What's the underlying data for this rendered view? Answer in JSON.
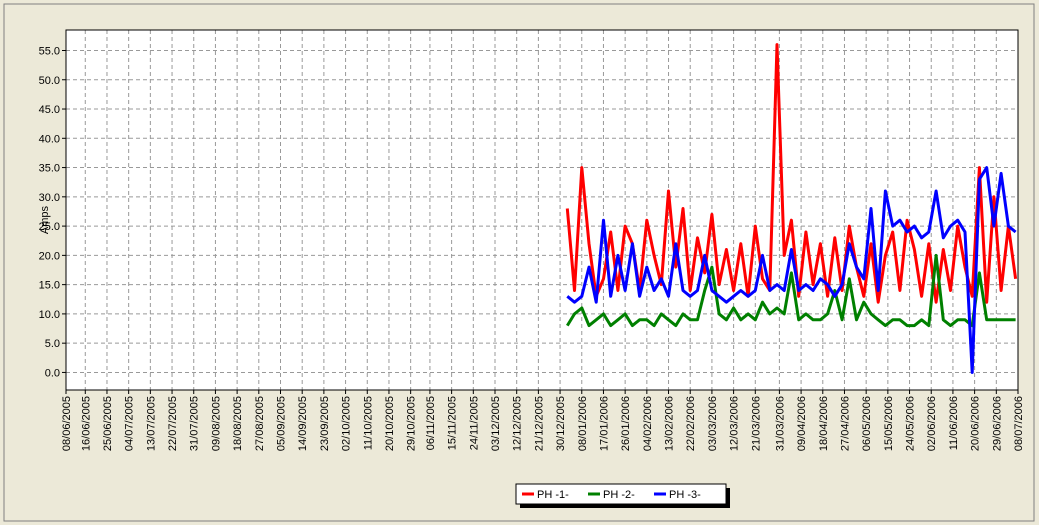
{
  "chart_data": {
    "type": "line",
    "y_label": "Amps",
    "x": [
      "02/01/2006",
      "05/01/2006",
      "08/01/2006",
      "11/01/2006",
      "14/01/2006",
      "17/01/2006",
      "20/01/2006",
      "23/01/2006",
      "26/01/2006",
      "29/01/2006",
      "01/02/2006",
      "04/02/2006",
      "07/02/2006",
      "10/02/2006",
      "13/02/2006",
      "16/02/2006",
      "19/02/2006",
      "22/02/2006",
      "25/02/2006",
      "28/02/2006",
      "03/03/2006",
      "06/03/2006",
      "09/03/2006",
      "12/03/2006",
      "15/03/2006",
      "18/03/2006",
      "21/03/2006",
      "24/03/2006",
      "27/03/2006",
      "30/03/2006",
      "02/04/2006",
      "05/04/2006",
      "08/04/2006",
      "11/04/2006",
      "14/04/2006",
      "17/04/2006",
      "20/04/2006",
      "23/04/2006",
      "26/04/2006",
      "29/04/2006",
      "02/05/2006",
      "05/05/2006",
      "08/05/2006",
      "11/05/2006",
      "14/05/2006",
      "17/05/2006",
      "20/05/2006",
      "23/05/2006",
      "26/05/2006",
      "29/05/2006",
      "01/06/2006",
      "04/06/2006",
      "07/06/2006",
      "10/06/2006",
      "13/06/2006",
      "16/06/2006",
      "19/06/2006",
      "22/06/2006",
      "25/06/2006",
      "28/06/2006",
      "01/07/2006",
      "04/07/2006",
      "07/07/2006"
    ],
    "series": [
      {
        "name": "PH -1-",
        "color": "#ff0000",
        "values": [
          28,
          14,
          35,
          22,
          13,
          16,
          24,
          14,
          25,
          22,
          14,
          26,
          20,
          15,
          31,
          18,
          28,
          14,
          23,
          17,
          27,
          15,
          21,
          14,
          22,
          13,
          25,
          16,
          14,
          56,
          20,
          26,
          13,
          24,
          15,
          22,
          13,
          23,
          14,
          25,
          18,
          13,
          22,
          12,
          20,
          24,
          14,
          26,
          21,
          13,
          22,
          12,
          21,
          14,
          25,
          18,
          13,
          35,
          12,
          30,
          14,
          25,
          16
        ]
      },
      {
        "name": "PH -2-",
        "color": "#008000",
        "values": [
          8,
          10,
          11,
          8,
          9,
          10,
          8,
          9,
          10,
          8,
          9,
          9,
          8,
          10,
          9,
          8,
          10,
          9,
          9,
          14,
          18,
          10,
          9,
          11,
          9,
          10,
          9,
          12,
          10,
          11,
          10,
          17,
          9,
          10,
          9,
          9,
          10,
          14,
          9,
          16,
          9,
          12,
          10,
          9,
          8,
          9,
          9,
          8,
          8,
          9,
          8,
          20,
          9,
          8,
          9,
          9,
          8,
          17,
          9,
          9,
          9,
          9,
          9
        ]
      },
      {
        "name": "PH -3-",
        "color": "#0000ff",
        "values": [
          13,
          12,
          13,
          18,
          12,
          26,
          13,
          20,
          14,
          22,
          13,
          18,
          14,
          16,
          13,
          22,
          14,
          13,
          14,
          20,
          14,
          13,
          12,
          13,
          14,
          13,
          14,
          20,
          14,
          15,
          14,
          21,
          14,
          15,
          14,
          16,
          15,
          13,
          15,
          22,
          18,
          16,
          28,
          14,
          31,
          25,
          26,
          24,
          25,
          23,
          24,
          31,
          23,
          25,
          26,
          24,
          0,
          33,
          35,
          25,
          34,
          25,
          24
        ]
      }
    ],
    "xlim": [
      "08/06/2005",
      "08/07/2006"
    ],
    "xticks": [
      "08/06/2005",
      "16/06/2005",
      "25/06/2005",
      "04/07/2005",
      "13/07/2005",
      "22/07/2005",
      "31/07/2005",
      "09/08/2005",
      "18/08/2005",
      "27/08/2005",
      "05/09/2005",
      "14/09/2005",
      "23/09/2005",
      "02/10/2005",
      "11/10/2005",
      "20/10/2005",
      "29/10/2005",
      "06/11/2005",
      "15/11/2005",
      "24/11/2005",
      "03/12/2005",
      "12/12/2005",
      "21/12/2005",
      "30/12/2005",
      "08/01/2006",
      "17/01/2006",
      "26/01/2006",
      "04/02/2006",
      "13/02/2006",
      "22/02/2006",
      "03/03/2006",
      "12/03/2006",
      "21/03/2006",
      "31/03/2006",
      "09/04/2006",
      "18/04/2006",
      "27/04/2006",
      "06/05/2006",
      "15/05/2006",
      "24/05/2006",
      "02/06/2006",
      "11/06/2006",
      "20/06/2006",
      "29/06/2006",
      "08/07/2006"
    ],
    "ylim": [
      -3,
      58.5
    ],
    "yticks": [
      {
        "value": 0,
        "label": "0.0"
      },
      {
        "value": 5,
        "label": "5.0"
      },
      {
        "value": 10,
        "label": "10.0"
      },
      {
        "value": 15,
        "label": "15.0"
      },
      {
        "value": 20,
        "label": "20.0"
      },
      {
        "value": 25,
        "label": "25.0"
      },
      {
        "value": 30,
        "label": "30.0"
      },
      {
        "value": 35,
        "label": "35.0"
      },
      {
        "value": 40,
        "label": "40.0"
      },
      {
        "value": 45,
        "label": "45.0"
      },
      {
        "value": 50,
        "label": "50.0"
      },
      {
        "value": 55,
        "label": "55.0"
      }
    ],
    "grid": true,
    "legend": "bottom"
  }
}
